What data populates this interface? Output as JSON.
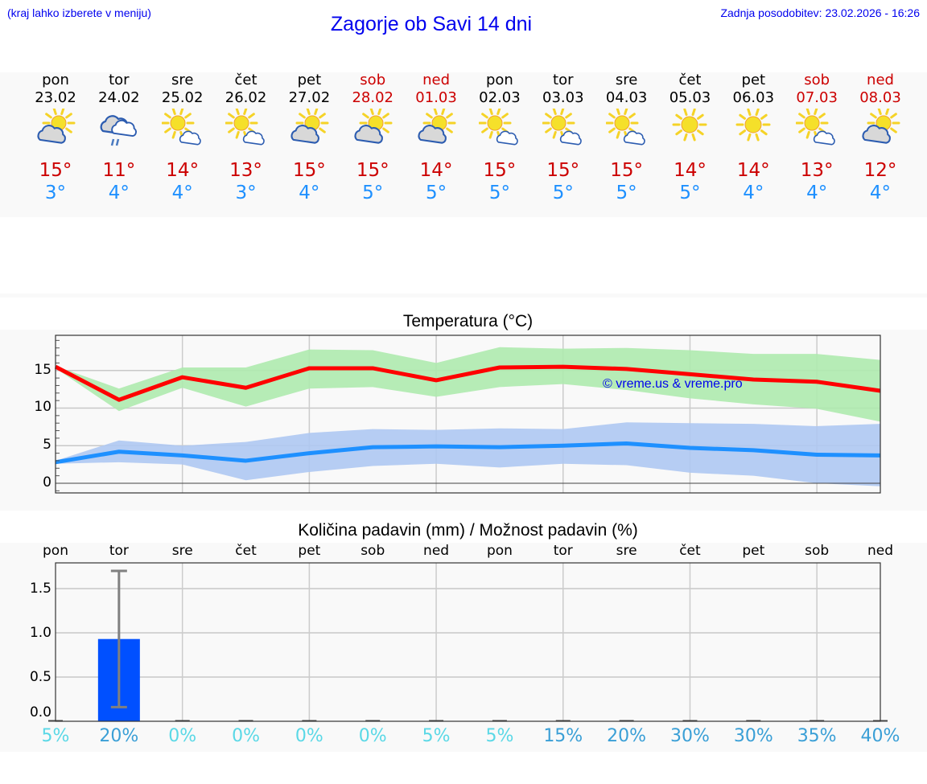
{
  "header": {
    "location_hint": "(kraj lahko izberete v meniju)",
    "title": "Zagorje ob Savi 14 dni",
    "last_update": "Zadnja posodobitev: 23.02.2026 - 16:26"
  },
  "colors": {
    "max_temp": "#cc0000",
    "min_temp": "#1e90ff",
    "weekend": "#cc0000",
    "link": "#0000ee",
    "max_band": "#aeeaae",
    "min_band": "#aec8f2",
    "max_line": "#ff0000",
    "min_line": "#1e90ff",
    "precip_bar": "#0050ff",
    "pct_low": "#5ad8e6",
    "pct_high": "#3a9fd6"
  },
  "forecast": {
    "days": [
      {
        "name": "pon",
        "date": "23.02",
        "icon": "partly-cloudy-icon",
        "max": "15°",
        "min": "3°",
        "weekend": false
      },
      {
        "name": "tor",
        "date": "24.02",
        "icon": "cloudy-rain-icon",
        "max": "11°",
        "min": "4°",
        "weekend": false
      },
      {
        "name": "sre",
        "date": "25.02",
        "icon": "sunny-small-cloud-icon",
        "max": "14°",
        "min": "4°",
        "weekend": false
      },
      {
        "name": "čet",
        "date": "26.02",
        "icon": "sunny-small-cloud-icon",
        "max": "13°",
        "min": "3°",
        "weekend": false
      },
      {
        "name": "pet",
        "date": "27.02",
        "icon": "partly-cloudy-icon",
        "max": "15°",
        "min": "4°",
        "weekend": false
      },
      {
        "name": "sob",
        "date": "28.02",
        "icon": "partly-cloudy-icon",
        "max": "15°",
        "min": "5°",
        "weekend": true
      },
      {
        "name": "ned",
        "date": "01.03",
        "icon": "partly-cloudy-icon",
        "max": "14°",
        "min": "5°",
        "weekend": true
      },
      {
        "name": "pon",
        "date": "02.03",
        "icon": "sunny-small-cloud-icon",
        "max": "15°",
        "min": "5°",
        "weekend": false
      },
      {
        "name": "tor",
        "date": "03.03",
        "icon": "sunny-small-cloud-icon",
        "max": "15°",
        "min": "5°",
        "weekend": false
      },
      {
        "name": "sre",
        "date": "04.03",
        "icon": "sunny-small-cloud-icon",
        "max": "15°",
        "min": "5°",
        "weekend": false
      },
      {
        "name": "čet",
        "date": "05.03",
        "icon": "sunny-icon",
        "max": "14°",
        "min": "5°",
        "weekend": false
      },
      {
        "name": "pet",
        "date": "06.03",
        "icon": "sunny-icon",
        "max": "14°",
        "min": "4°",
        "weekend": false
      },
      {
        "name": "sob",
        "date": "07.03",
        "icon": "sunny-small-cloud-icon",
        "max": "13°",
        "min": "4°",
        "weekend": true
      },
      {
        "name": "ned",
        "date": "08.03",
        "icon": "partly-cloudy-icon",
        "max": "12°",
        "min": "4°",
        "weekend": true
      }
    ]
  },
  "chart_data": [
    {
      "type": "line",
      "title": "Temperatura (°C)",
      "xlabel": "",
      "ylabel": "",
      "x": [
        "23.02",
        "24.02",
        "25.02",
        "26.02",
        "27.02",
        "28.02",
        "01.03",
        "02.03",
        "03.03",
        "04.03",
        "05.03",
        "06.03",
        "07.03",
        "08.03"
      ],
      "ylim": [
        -1.3,
        19.5
      ],
      "yticks": [
        0,
        5,
        10,
        15
      ],
      "grid": true,
      "watermark": "© vreme.us & vreme.pro",
      "series": [
        {
          "name": "max",
          "values": [
            15.5,
            11.1,
            14.1,
            12.7,
            15.3,
            15.3,
            13.7,
            15.4,
            15.5,
            15.2,
            14.5,
            13.8,
            13.5,
            12.3
          ]
        },
        {
          "name": "max_band_upper",
          "values": [
            15.6,
            12.6,
            15.4,
            15.4,
            17.8,
            17.7,
            16.0,
            18.1,
            17.9,
            18.0,
            17.7,
            17.2,
            17.2,
            16.4
          ]
        },
        {
          "name": "max_band_lower",
          "values": [
            15.3,
            9.6,
            12.7,
            10.2,
            12.6,
            12.8,
            11.5,
            12.8,
            13.2,
            12.4,
            11.3,
            10.5,
            9.9,
            8.2
          ]
        },
        {
          "name": "min",
          "values": [
            2.8,
            4.2,
            3.7,
            3.0,
            4.0,
            4.8,
            4.9,
            4.8,
            5.0,
            5.3,
            4.7,
            4.4,
            3.8,
            3.7
          ]
        },
        {
          "name": "min_band_upper",
          "values": [
            3.0,
            5.7,
            5.0,
            5.5,
            6.7,
            7.2,
            7.1,
            7.3,
            7.2,
            8.1,
            8.0,
            7.9,
            7.6,
            7.9
          ]
        },
        {
          "name": "min_band_lower",
          "values": [
            2.6,
            2.8,
            2.5,
            0.4,
            1.5,
            2.3,
            2.6,
            2.1,
            2.6,
            2.4,
            1.4,
            1.0,
            0.0,
            -0.4
          ]
        }
      ]
    },
    {
      "type": "bar",
      "title": "Količina padavin (mm) / Možnost padavin (%)",
      "xlabel": "",
      "ylabel": "",
      "categories": [
        "pon",
        "tor",
        "sre",
        "čet",
        "pet",
        "sob",
        "ned",
        "pon",
        "tor",
        "sre",
        "čet",
        "pet",
        "sob",
        "ned"
      ],
      "ylim": [
        -0.1,
        1.8
      ],
      "yticks": [
        0.0,
        0.5,
        1.0,
        1.5
      ],
      "grid": true,
      "series": [
        {
          "name": "precip_mm",
          "values": [
            0,
            0.93,
            0,
            0,
            0,
            0,
            0,
            0,
            0,
            0,
            0,
            0,
            0,
            0
          ]
        },
        {
          "name": "error_upper",
          "values": [
            0,
            1.7,
            0,
            0,
            0,
            0,
            0,
            0,
            0,
            0,
            0,
            0,
            0,
            0
          ]
        },
        {
          "name": "error_lower",
          "values": [
            0,
            0.16,
            0,
            0,
            0,
            0,
            0,
            0,
            0,
            0,
            0,
            0,
            0,
            0
          ]
        },
        {
          "name": "precip_chance_pct",
          "values": [
            5,
            20,
            0,
            0,
            0,
            0,
            5,
            5,
            15,
            20,
            30,
            30,
            35,
            40
          ]
        }
      ],
      "pct_labels": [
        "5%",
        "20%",
        "0%",
        "0%",
        "0%",
        "0%",
        "5%",
        "5%",
        "15%",
        "20%",
        "30%",
        "30%",
        "35%",
        "40%"
      ]
    }
  ],
  "temp_chart": {
    "title": "Temperatura (°C)",
    "yticks": [
      "15",
      "10",
      "5",
      "0"
    ],
    "watermark": "© vreme.us & vreme.pro"
  },
  "precip_chart": {
    "title": "Količina padavin (mm) / Možnost padavin (%)",
    "yticks": [
      "1.5",
      "1.0",
      "0.5",
      "0.0"
    ]
  }
}
